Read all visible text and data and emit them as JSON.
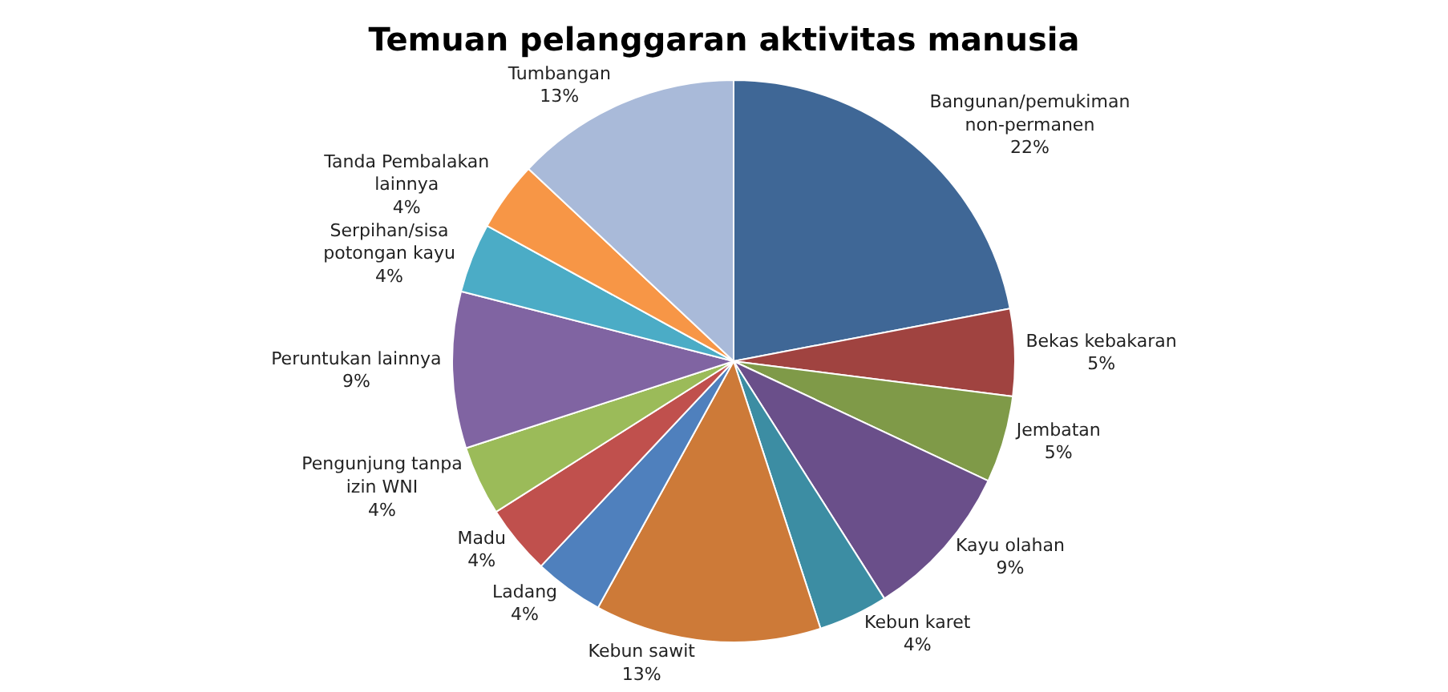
{
  "chart_data": {
    "type": "pie",
    "title": "Temuan pelanggaran aktivitas manusia",
    "categories": [
      "Bangunan/pemukiman non-permanen",
      "Bekas kebakaran",
      "Jembatan",
      "Kayu olahan",
      "Kebun karet",
      "Kebun sawit",
      "Ladang",
      "Madu",
      "Pengunjung tanpa izin WNI",
      "Peruntukan lainnya",
      "Serpihan/sisa potongan kayu",
      "Tanda Pembalakan lainnya",
      "Tumbangan"
    ],
    "values": [
      22,
      5,
      5,
      9,
      4,
      13,
      4,
      4,
      4,
      9,
      4,
      4,
      13
    ],
    "value_labels": [
      "22%",
      "5%",
      "5%",
      "9%",
      "4%",
      "13%",
      "4%",
      "4%",
      "4%",
      "9%",
      "4%",
      "4%",
      "13%"
    ],
    "colors": [
      "#3f6796",
      "#a04340",
      "#7f9a48",
      "#6a4f8a",
      "#3c8da3",
      "#cd7a38",
      "#4f80bd",
      "#c0504d",
      "#9bbb59",
      "#8064a2",
      "#4bacc6",
      "#f79646",
      "#a9bad9"
    ],
    "legend": false
  }
}
